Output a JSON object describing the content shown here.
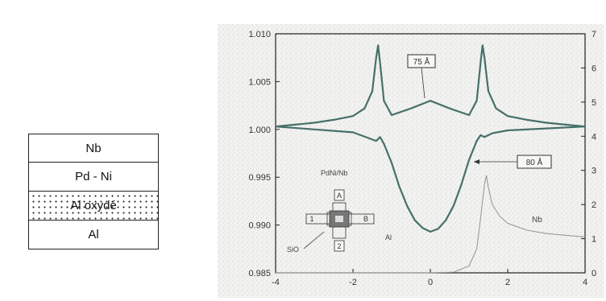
{
  "layer_stack": {
    "layers": [
      "Nb",
      "Pd - Ni",
      "Al oxydé",
      "Al"
    ]
  },
  "chart_data": {
    "type": "line",
    "xlim": [
      -4,
      4
    ],
    "ylim": [
      0.985,
      1.01
    ],
    "ylim_right": [
      0,
      7
    ],
    "xticks": [
      "-4",
      "-2",
      "0",
      "2",
      "4"
    ],
    "yticks_left": [
      "1.010",
      "1.005",
      "1.000",
      "0.995",
      "0.990",
      "0.985"
    ],
    "yticks_right": [
      "7",
      "6",
      "5",
      "4",
      "3",
      "2",
      "1",
      "0"
    ],
    "grid": false,
    "series": [
      {
        "name": "75 Å",
        "x": [
          -4.0,
          -3.5,
          -3.0,
          -2.5,
          -2.0,
          -1.7,
          -1.5,
          -1.4,
          -1.35,
          -1.3,
          -1.2,
          -1.0,
          -0.5,
          0.0,
          0.5,
          1.0,
          1.2,
          1.3,
          1.35,
          1.4,
          1.5,
          1.7,
          2.0,
          2.5,
          3.0,
          3.5,
          4.0
        ],
        "y": [
          1.0003,
          1.0005,
          1.0007,
          1.001,
          1.0014,
          1.0022,
          1.004,
          1.0075,
          1.0088,
          1.007,
          1.003,
          1.0015,
          1.0022,
          1.003,
          1.0022,
          1.0015,
          1.003,
          1.007,
          1.0088,
          1.0075,
          1.004,
          1.0022,
          1.0014,
          1.001,
          1.0007,
          1.0005,
          1.0003
        ]
      },
      {
        "name": "80 Å",
        "x": [
          -4.0,
          -3.0,
          -2.0,
          -1.6,
          -1.4,
          -1.3,
          -1.2,
          -1.0,
          -0.8,
          -0.6,
          -0.4,
          -0.2,
          0.0,
          0.2,
          0.4,
          0.6,
          0.8,
          1.0,
          1.2,
          1.3,
          1.4,
          1.6,
          2.0,
          3.0,
          4.0
        ],
        "y": [
          1.0003,
          1.0,
          0.9997,
          0.9991,
          0.9988,
          0.9992,
          0.9985,
          0.9965,
          0.994,
          0.992,
          0.9905,
          0.9897,
          0.9893,
          0.9896,
          0.9905,
          0.992,
          0.9942,
          0.9968,
          0.9988,
          0.9994,
          0.9992,
          0.9996,
          0.9999,
          1.0001,
          1.0003
        ]
      },
      {
        "name": "Nb",
        "x": [
          -4.0,
          0.0,
          0.6,
          1.0,
          1.2,
          1.3,
          1.4,
          1.45,
          1.5,
          1.6,
          1.8,
          2.0,
          2.5,
          3.0,
          3.5,
          4.0
        ],
        "y_right": [
          0.0,
          0.0,
          0.02,
          0.2,
          0.7,
          1.6,
          2.6,
          2.85,
          2.5,
          2.0,
          1.65,
          1.45,
          1.25,
          1.15,
          1.1,
          1.05
        ]
      }
    ],
    "annotations": [
      "75 Å",
      "80 Å",
      "Nb",
      "PdNi/Nb",
      "Al",
      "SiO",
      "A",
      "B",
      "1",
      "2"
    ]
  }
}
